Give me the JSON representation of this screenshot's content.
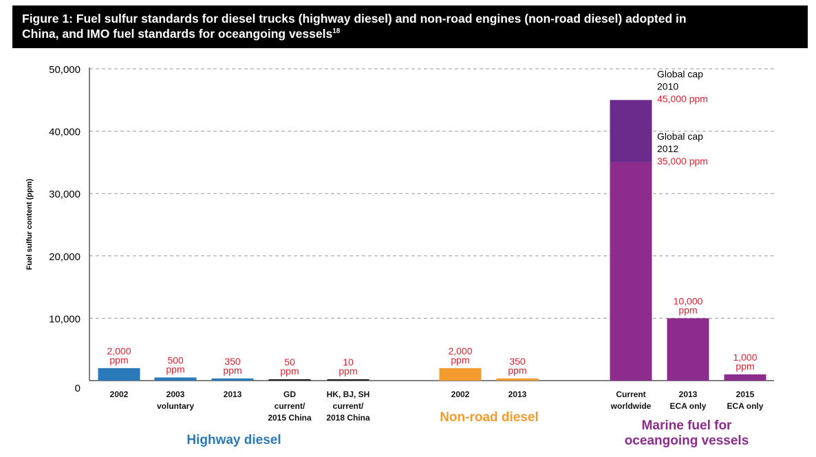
{
  "figure": {
    "title_line1": "Figure 1: Fuel sulfur standards for diesel trucks (highway diesel) and non-road engines (non-road diesel) adopted in",
    "title_line2": "China, and IMO fuel standards for oceangoing vessels",
    "title_sup": "18"
  },
  "colors": {
    "highway": "#2a7ab9",
    "nonroad": "#f39b2e",
    "marine": "#8e2c8e",
    "marine_top": "#6a2b8a",
    "value_label": "#e0202e",
    "grid": "#9a9a9a"
  },
  "chart_data": {
    "type": "bar",
    "ylabel": "Fuel sulfur content (ppm)",
    "ylim": [
      0,
      50000
    ],
    "yticks": [
      0,
      10000,
      20000,
      30000,
      40000,
      50000
    ],
    "ytick_labels": [
      "0",
      "10,000",
      "20,000",
      "30,000",
      "40,000",
      "50,000"
    ],
    "grid": true,
    "groups": [
      {
        "name": "Highway diesel",
        "color_key": "highway",
        "bars": [
          {
            "category": [
              "2002"
            ],
            "value": 2000,
            "label": [
              "2,000",
              "ppm"
            ]
          },
          {
            "category": [
              "2003",
              "voluntary"
            ],
            "value": 500,
            "label": [
              "500",
              "ppm"
            ]
          },
          {
            "category": [
              "2013"
            ],
            "value": 350,
            "label": [
              "350",
              "ppm"
            ]
          },
          {
            "category": [
              "GD",
              "current/",
              "2015 China"
            ],
            "value": 50,
            "label": [
              "50",
              "ppm"
            ]
          },
          {
            "category": [
              "HK, BJ, SH",
              "current/",
              "2018 China"
            ],
            "value": 10,
            "label": [
              "10",
              "ppm"
            ]
          }
        ]
      },
      {
        "name": "Non-road diesel",
        "color_key": "nonroad",
        "bars": [
          {
            "category": [
              "2002"
            ],
            "value": 2000,
            "label": [
              "2,000",
              "ppm"
            ]
          },
          {
            "category": [
              "2013"
            ],
            "value": 350,
            "label": [
              "350",
              "ppm"
            ]
          }
        ]
      },
      {
        "name": "Marine fuel for oceangoing vessels",
        "name_lines": [
          "Marine fuel for",
          "oceangoing vessels"
        ],
        "color_key": "marine",
        "bars": [
          {
            "category": [
              "Current",
              "worldwide"
            ],
            "value": 35000,
            "stack_top": 45000
          },
          {
            "category": [
              "2013",
              "ECA only"
            ],
            "value": 10000,
            "label": [
              "10,000",
              "ppm"
            ]
          },
          {
            "category": [
              "2015",
              "ECA only"
            ],
            "value": 1000,
            "label": [
              "1,000",
              "ppm"
            ]
          }
        ]
      }
    ],
    "annotations": [
      {
        "lines": [
          "Global cap",
          "2010"
        ],
        "value_text": "45,000 ppm",
        "value": 45000
      },
      {
        "lines": [
          "Global cap",
          "2012"
        ],
        "value_text": "35,000 ppm",
        "value": 35000
      }
    ]
  }
}
